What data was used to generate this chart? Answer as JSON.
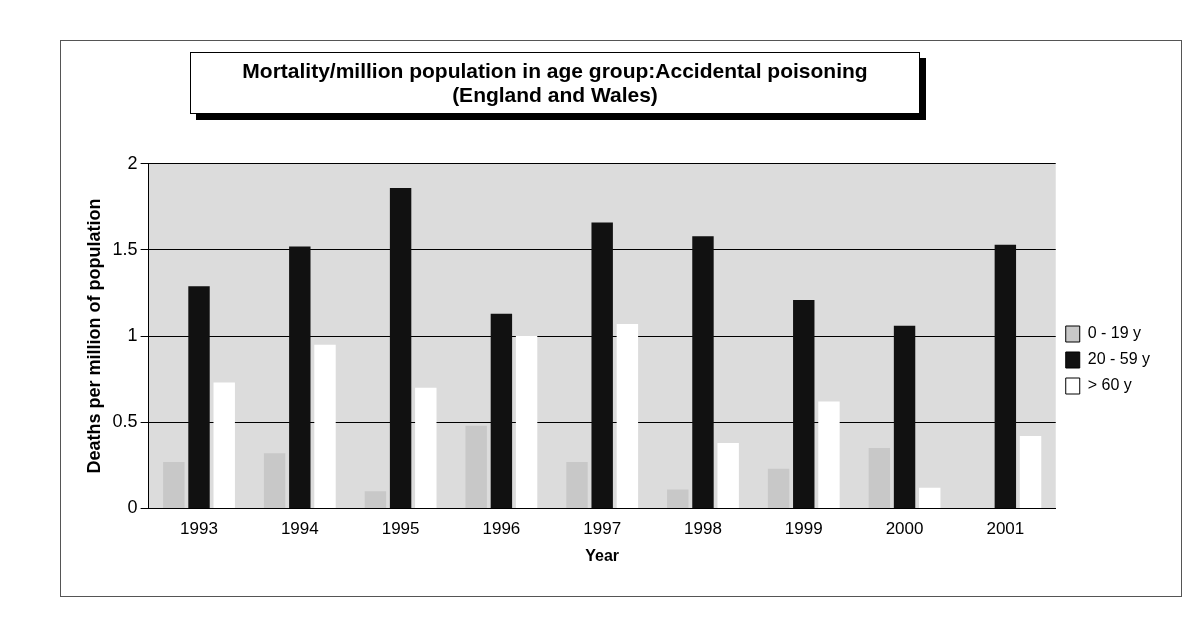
{
  "chart_data": {
    "type": "bar",
    "title": "Mortality/million population in age group:Accidental poisoning\n(England and Wales)",
    "xlabel": "Year",
    "ylabel": "Deaths per million of population",
    "categories": [
      "1993",
      "1994",
      "1995",
      "1996",
      "1997",
      "1998",
      "1999",
      "2000",
      "2001"
    ],
    "series": [
      {
        "name": "0 - 19 y",
        "color": "#c8c8c8",
        "values": [
          0.27,
          0.32,
          0.1,
          0.48,
          0.27,
          0.11,
          0.23,
          0.35,
          0
        ]
      },
      {
        "name": "20 - 59 y",
        "color": "#111111",
        "values": [
          1.29,
          1.52,
          1.86,
          1.13,
          1.66,
          1.58,
          1.21,
          1.06,
          1.53
        ]
      },
      {
        "name": "> 60 y",
        "color": "#ffffff",
        "values": [
          0.73,
          0.95,
          0.7,
          1.0,
          1.07,
          0.38,
          0.62,
          0.12,
          0.42
        ]
      }
    ],
    "ylim": [
      0,
      2
    ],
    "yticks": [
      0,
      0.5,
      1,
      1.5,
      2
    ],
    "grid": "y",
    "legend": "right"
  }
}
